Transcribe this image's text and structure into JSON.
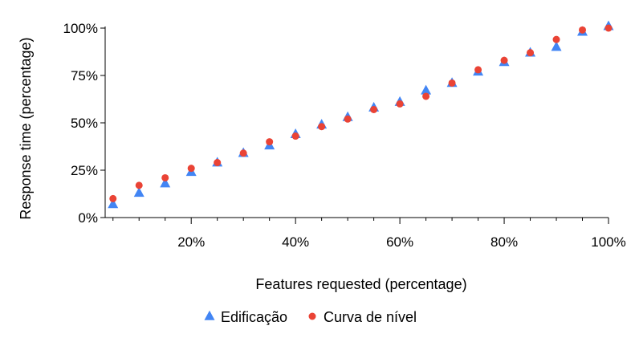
{
  "chart_data": {
    "type": "scatter",
    "title": "",
    "xlabel": "Features requested (percentage)",
    "ylabel": "Response time (percentage)",
    "xlim": [
      3.5,
      100
    ],
    "ylim": [
      0,
      100
    ],
    "x_ticks": [
      20,
      40,
      60,
      80,
      100
    ],
    "x_tick_labels": [
      "20%",
      "40%",
      "60%",
      "80%",
      "100%"
    ],
    "x_minor_ticks": [
      5,
      10,
      15,
      25,
      30,
      35,
      45,
      50,
      55,
      65,
      70,
      75,
      85,
      90,
      95
    ],
    "y_ticks": [
      0,
      25,
      50,
      75,
      100
    ],
    "y_tick_labels": [
      "0%",
      "25%",
      "50%",
      "75%",
      "100%"
    ],
    "grid": false,
    "legend_position": "bottom-center",
    "series": [
      {
        "name": "Edificação",
        "marker": "triangle",
        "color": "#4285f4",
        "points": [
          {
            "x": 5,
            "y": 7
          },
          {
            "x": 10,
            "y": 13
          },
          {
            "x": 15,
            "y": 18
          },
          {
            "x": 20,
            "y": 24
          },
          {
            "x": 25,
            "y": 29
          },
          {
            "x": 30,
            "y": 34
          },
          {
            "x": 35,
            "y": 38
          },
          {
            "x": 40,
            "y": 44
          },
          {
            "x": 45,
            "y": 49
          },
          {
            "x": 50,
            "y": 53
          },
          {
            "x": 55,
            "y": 58
          },
          {
            "x": 60,
            "y": 61
          },
          {
            "x": 65,
            "y": 67
          },
          {
            "x": 70,
            "y": 71
          },
          {
            "x": 75,
            "y": 77
          },
          {
            "x": 80,
            "y": 82
          },
          {
            "x": 85,
            "y": 87
          },
          {
            "x": 90,
            "y": 90
          },
          {
            "x": 95,
            "y": 98
          },
          {
            "x": 100,
            "y": 101
          }
        ]
      },
      {
        "name": "Curva de nível",
        "marker": "circle",
        "color": "#ea4335",
        "points": [
          {
            "x": 5,
            "y": 10
          },
          {
            "x": 10,
            "y": 17
          },
          {
            "x": 15,
            "y": 21
          },
          {
            "x": 20,
            "y": 26
          },
          {
            "x": 25,
            "y": 29
          },
          {
            "x": 30,
            "y": 34
          },
          {
            "x": 35,
            "y": 40
          },
          {
            "x": 40,
            "y": 43
          },
          {
            "x": 45,
            "y": 48
          },
          {
            "x": 50,
            "y": 52
          },
          {
            "x": 55,
            "y": 57
          },
          {
            "x": 60,
            "y": 60
          },
          {
            "x": 65,
            "y": 64
          },
          {
            "x": 70,
            "y": 71
          },
          {
            "x": 75,
            "y": 78
          },
          {
            "x": 80,
            "y": 83
          },
          {
            "x": 85,
            "y": 87
          },
          {
            "x": 90,
            "y": 94
          },
          {
            "x": 95,
            "y": 99
          },
          {
            "x": 100,
            "y": 100
          }
        ]
      }
    ]
  }
}
